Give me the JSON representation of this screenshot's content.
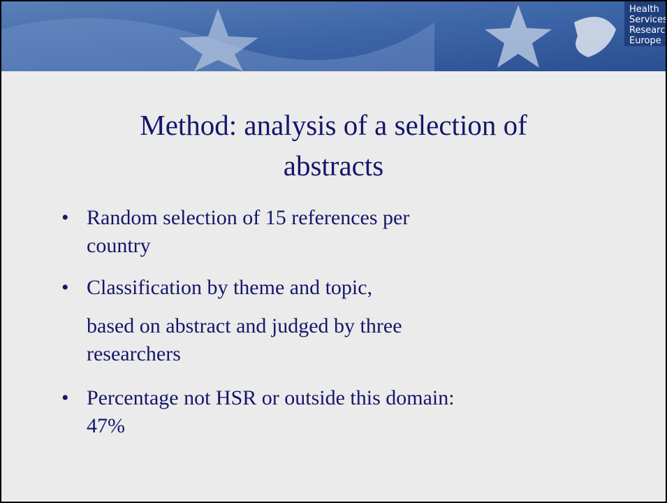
{
  "logo": {
    "lines": [
      "Health",
      "Services",
      "Research",
      "Europe"
    ]
  },
  "title": {
    "lines": [
      "Method: analysis of a selection of",
      "abstracts"
    ]
  },
  "bullets": [
    {
      "lines": [
        "Random selection of 15 references per",
        "country"
      ]
    },
    {
      "lines": [
        "Classification by theme and topic,"
      ],
      "continuation": [
        "based on abstract and judged by three",
        "researchers"
      ]
    },
    {
      "lines": [
        "Percentage not HSR or outside this domain:",
        "47%"
      ]
    }
  ]
}
